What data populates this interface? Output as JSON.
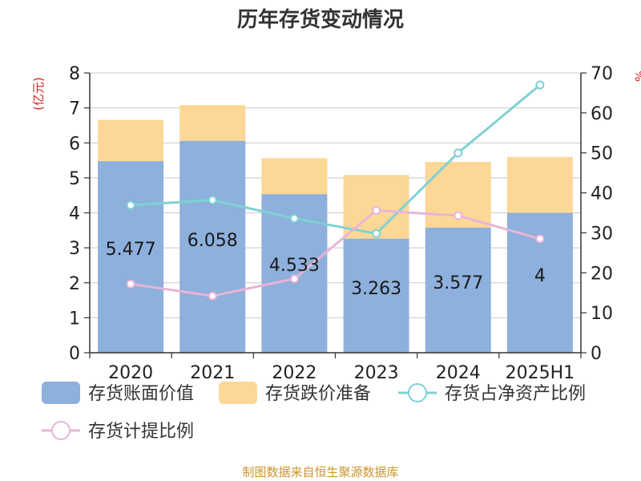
{
  "chart_data": {
    "type": "bar",
    "title": "历年存货变动情况",
    "categories": [
      "2020",
      "2021",
      "2022",
      "2023",
      "2024",
      "2025H1"
    ],
    "ylabel_left": "(亿元)",
    "ylabel_right": "%",
    "ylim_left": [
      0,
      8
    ],
    "ylim_right": [
      0,
      70
    ],
    "yticks_left": [
      "0",
      "1",
      "2",
      "3",
      "4",
      "5",
      "6",
      "7",
      "8"
    ],
    "yticks_right": [
      "0",
      "10",
      "20",
      "30",
      "40",
      "50",
      "60",
      "70"
    ],
    "grid": true,
    "legend_position": "bottom",
    "series": [
      {
        "name": "存货账面价值",
        "type": "bar",
        "axis": "left",
        "color": "#8eb0dc",
        "values": [
          5.477,
          6.058,
          4.533,
          3.263,
          3.577,
          4
        ],
        "labels": [
          "5.477",
          "6.058",
          "4.533",
          "3.263",
          "3.577",
          "4"
        ]
      },
      {
        "name": "存货跌价准备",
        "type": "bar",
        "axis": "left",
        "stacked": true,
        "color": "#fdd796",
        "values": [
          1.18,
          1.02,
          1.03,
          1.82,
          1.88,
          1.6
        ]
      },
      {
        "name": "存货占净资产比例",
        "type": "line",
        "axis": "right",
        "color": "#7fd1d4",
        "values": [
          36.9,
          38.2,
          33.6,
          29.8,
          50.0,
          67.0
        ]
      },
      {
        "name": "存货计提比例",
        "type": "line",
        "axis": "right",
        "color": "#e8b4d8",
        "values": [
          17.2,
          14.2,
          18.5,
          35.6,
          34.3,
          28.5
        ]
      }
    ]
  },
  "footer": {
    "source": "制图数据来自恒生聚源数据库"
  }
}
